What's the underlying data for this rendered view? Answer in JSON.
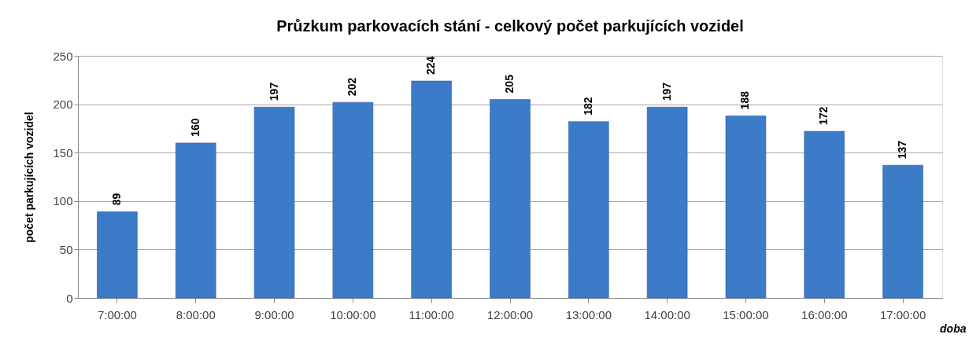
{
  "chart_data": {
    "type": "bar",
    "title": "Průzkum parkovacích stání - celkový počet parkujících vozidel",
    "xlabel": "doba",
    "ylabel": "počet parkujících vozidel",
    "categories": [
      "7:00:00",
      "8:00:00",
      "9:00:00",
      "10:00:00",
      "11:00:00",
      "12:00:00",
      "13:00:00",
      "14:00:00",
      "15:00:00",
      "16:00:00",
      "17:00:00"
    ],
    "values": [
      89,
      160,
      197,
      202,
      224,
      205,
      182,
      197,
      188,
      172,
      137
    ],
    "color": "#3b7bc8",
    "ylim": [
      0,
      250
    ],
    "yticks": [
      0,
      50,
      100,
      150,
      200,
      250
    ],
    "grid": "y",
    "data_labels": true
  }
}
